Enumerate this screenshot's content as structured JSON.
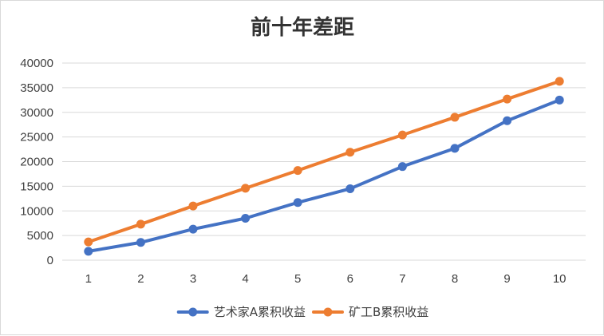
{
  "chart_data": {
    "type": "line",
    "title": "前十年差距",
    "xlabel": "",
    "ylabel": "",
    "categories": [
      "1",
      "2",
      "3",
      "4",
      "5",
      "6",
      "7",
      "8",
      "9",
      "10"
    ],
    "ylim": [
      0,
      40000
    ],
    "yticks": [
      0,
      5000,
      10000,
      15000,
      20000,
      25000,
      30000,
      35000,
      40000
    ],
    "grid": true,
    "legend_position": "bottom",
    "series": [
      {
        "name": "艺术家A累积收益",
        "color": "#4472C4",
        "values": [
          1800,
          3600,
          6300,
          8500,
          11700,
          14500,
          19000,
          22700,
          28300,
          32500
        ]
      },
      {
        "name": "矿工B累积收益",
        "color": "#ED7D31",
        "values": [
          3700,
          7300,
          11000,
          14600,
          18200,
          21900,
          25400,
          29000,
          32700,
          36300
        ]
      }
    ]
  }
}
